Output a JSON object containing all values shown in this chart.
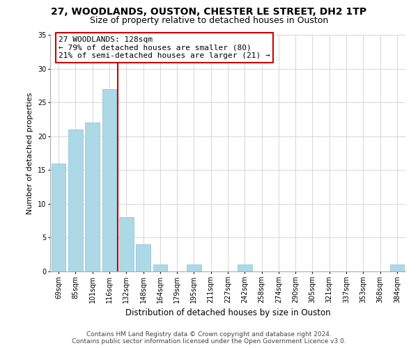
{
  "title": "27, WOODLANDS, OUSTON, CHESTER LE STREET, DH2 1TP",
  "subtitle": "Size of property relative to detached houses in Ouston",
  "xlabel": "Distribution of detached houses by size in Ouston",
  "ylabel": "Number of detached properties",
  "bar_labels": [
    "69sqm",
    "85sqm",
    "101sqm",
    "116sqm",
    "132sqm",
    "148sqm",
    "164sqm",
    "179sqm",
    "195sqm",
    "211sqm",
    "227sqm",
    "242sqm",
    "258sqm",
    "274sqm",
    "290sqm",
    "305sqm",
    "321sqm",
    "337sqm",
    "353sqm",
    "368sqm",
    "384sqm"
  ],
  "bar_values": [
    16,
    21,
    22,
    27,
    8,
    4,
    1,
    0,
    1,
    0,
    0,
    1,
    0,
    0,
    0,
    0,
    0,
    0,
    0,
    0,
    1
  ],
  "bar_color": "#add8e6",
  "bar_edge_color": "#8fc8e0",
  "vline_color": "#cc0000",
  "vline_x_index": 4,
  "annotation_line1": "27 WOODLANDS: 128sqm",
  "annotation_line2": "← 79% of detached houses are smaller (80)",
  "annotation_line3": "21% of semi-detached houses are larger (21) →",
  "annotation_box_edge": "#cc0000",
  "annotation_box_face": "white",
  "ylim": [
    0,
    35
  ],
  "yticks": [
    0,
    5,
    10,
    15,
    20,
    25,
    30,
    35
  ],
  "footer_line1": "Contains HM Land Registry data © Crown copyright and database right 2024.",
  "footer_line2": "Contains public sector information licensed under the Open Government Licence v3.0.",
  "title_fontsize": 10,
  "subtitle_fontsize": 9,
  "axis_label_fontsize": 8.5,
  "tick_fontsize": 7,
  "annotation_fontsize": 8,
  "footer_fontsize": 6.5,
  "ylabel_fontsize": 8
}
